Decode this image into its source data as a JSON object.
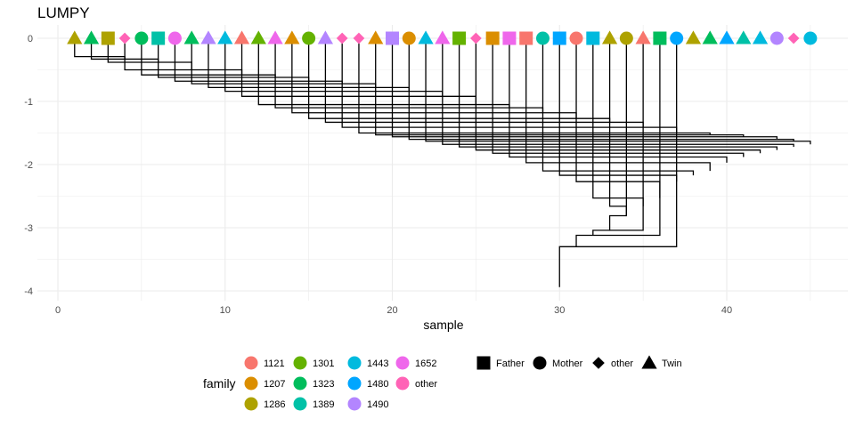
{
  "chart_data": {
    "type": "dendrogram",
    "title": "LUMPY",
    "xlabel": "sample",
    "ylabel": "",
    "xlim": [
      -0.5,
      47.5
    ],
    "ylim": [
      -4.2,
      0.15
    ],
    "x_ticks": [
      0,
      10,
      20,
      30,
      40
    ],
    "y_ticks": [
      0,
      -1,
      -2,
      -3,
      -4
    ],
    "grid": "on",
    "legend_position": "bottom",
    "leaves": [
      {
        "x": 1,
        "family": "1286",
        "role": "Twin"
      },
      {
        "x": 2,
        "family": "1323",
        "role": "Twin"
      },
      {
        "x": 3,
        "family": "1286",
        "role": "Father"
      },
      {
        "x": 4,
        "family": "other",
        "role": "other"
      },
      {
        "x": 5,
        "family": "1323",
        "role": "Mother"
      },
      {
        "x": 6,
        "family": "1389",
        "role": "Father"
      },
      {
        "x": 7,
        "family": "1652",
        "role": "Mother"
      },
      {
        "x": 8,
        "family": "1323",
        "role": "Twin"
      },
      {
        "x": 9,
        "family": "1490",
        "role": "Twin"
      },
      {
        "x": 10,
        "family": "1443",
        "role": "Twin"
      },
      {
        "x": 11,
        "family": "1121",
        "role": "Twin"
      },
      {
        "x": 12,
        "family": "1301",
        "role": "Twin"
      },
      {
        "x": 13,
        "family": "1652",
        "role": "Twin"
      },
      {
        "x": 14,
        "family": "1207",
        "role": "Twin"
      },
      {
        "x": 15,
        "family": "1301",
        "role": "Mother"
      },
      {
        "x": 16,
        "family": "1490",
        "role": "Twin"
      },
      {
        "x": 17,
        "family": "other",
        "role": "other"
      },
      {
        "x": 18,
        "family": "other",
        "role": "other"
      },
      {
        "x": 19,
        "family": "1207",
        "role": "Twin"
      },
      {
        "x": 20,
        "family": "1490",
        "role": "Father"
      },
      {
        "x": 21,
        "family": "1207",
        "role": "Mother"
      },
      {
        "x": 22,
        "family": "1443",
        "role": "Twin"
      },
      {
        "x": 23,
        "family": "1652",
        "role": "Twin"
      },
      {
        "x": 24,
        "family": "1301",
        "role": "Father"
      },
      {
        "x": 25,
        "family": "other",
        "role": "other"
      },
      {
        "x": 26,
        "family": "1207",
        "role": "Father"
      },
      {
        "x": 27,
        "family": "1652",
        "role": "Father"
      },
      {
        "x": 28,
        "family": "1121",
        "role": "Father"
      },
      {
        "x": 29,
        "family": "1389",
        "role": "Mother"
      },
      {
        "x": 30,
        "family": "1480",
        "role": "Father"
      },
      {
        "x": 31,
        "family": "1121",
        "role": "Mother"
      },
      {
        "x": 32,
        "family": "1443",
        "role": "Father"
      },
      {
        "x": 33,
        "family": "1286",
        "role": "Twin"
      },
      {
        "x": 34,
        "family": "1286",
        "role": "Mother"
      },
      {
        "x": 35,
        "family": "1121",
        "role": "Twin"
      },
      {
        "x": 36,
        "family": "1323",
        "role": "Father"
      },
      {
        "x": 37,
        "family": "1480",
        "role": "Mother"
      },
      {
        "x": 38,
        "family": "1286",
        "role": "Twin"
      },
      {
        "x": 39,
        "family": "1323",
        "role": "Twin"
      },
      {
        "x": 40,
        "family": "1480",
        "role": "Twin"
      },
      {
        "x": 41,
        "family": "1389",
        "role": "Twin"
      },
      {
        "x": 42,
        "family": "1443",
        "role": "Twin"
      },
      {
        "x": 43,
        "family": "1490",
        "role": "Mother"
      },
      {
        "x": 44,
        "family": "other",
        "role": "other"
      },
      {
        "x": 45,
        "family": "1443",
        "role": "Mother"
      }
    ],
    "links": [
      {
        "x1": 1,
        "x2": 4,
        "y": -0.29,
        "y1": 0,
        "y2": -0.33
      },
      {
        "x1": 2,
        "x2": 6,
        "y": -0.33,
        "y1": 0,
        "y2": -0.38
      },
      {
        "x1": 3,
        "x2": 8,
        "y": -0.38,
        "y1": 0,
        "y2": -0.5
      },
      {
        "x1": 4,
        "x2": 11,
        "y": -0.5,
        "y1": 0,
        "y2": -0.58
      },
      {
        "x1": 5,
        "x2": 13,
        "y": -0.58,
        "y1": 0,
        "y2": -0.62
      },
      {
        "x1": 6,
        "x2": 15,
        "y": -0.62,
        "y1": 0,
        "y2": -0.68
      },
      {
        "x1": 7,
        "x2": 17,
        "y": -0.68,
        "y1": 0,
        "y2": -0.72
      },
      {
        "x1": 8,
        "x2": 19,
        "y": -0.72,
        "y1": 0,
        "y2": -0.78
      },
      {
        "x1": 9,
        "x2": 21,
        "y": -0.78,
        "y1": 0,
        "y2": -0.84
      },
      {
        "x1": 10,
        "x2": 23,
        "y": -0.84,
        "y1": 0,
        "y2": -0.92
      },
      {
        "x1": 11,
        "x2": 25,
        "y": -0.92,
        "y1": 0,
        "y2": -1.05
      },
      {
        "x1": 12,
        "x2": 27,
        "y": -1.05,
        "y1": 0,
        "y2": -1.1
      },
      {
        "x1": 13,
        "x2": 29,
        "y": -1.1,
        "y1": 0,
        "y2": -1.18
      },
      {
        "x1": 14,
        "x2": 31,
        "y": -1.18,
        "y1": 0,
        "y2": -1.27
      },
      {
        "x1": 15,
        "x2": 33,
        "y": -1.27,
        "y1": 0,
        "y2": -1.33
      },
      {
        "x1": 16,
        "x2": 35,
        "y": -1.33,
        "y1": 0,
        "y2": -1.41
      },
      {
        "x1": 17,
        "x2": 37,
        "y": -1.41,
        "y1": 0,
        "y2": -1.5
      },
      {
        "x1": 18,
        "x2": 39,
        "y": -1.5,
        "y1": 0,
        "y2": -1.53
      },
      {
        "x1": 19,
        "x2": 41,
        "y": -1.53,
        "y1": 0,
        "y2": -1.56
      },
      {
        "x1": 20,
        "x2": 43,
        "y": -1.56,
        "y1": 0,
        "y2": -1.6
      },
      {
        "x1": 21,
        "x2": 44,
        "y": -1.6,
        "y1": 0,
        "y2": -1.63
      },
      {
        "x1": 22,
        "x2": 45,
        "y": -1.63,
        "y1": 0,
        "y2": -1.68
      },
      {
        "x1": 23,
        "x2": 44,
        "y": -1.68,
        "y1": 0,
        "y2": -1.72
      },
      {
        "x1": 24,
        "x2": 43,
        "y": -1.72,
        "y1": 0,
        "y2": -1.77
      },
      {
        "x1": 25,
        "x2": 42,
        "y": -1.77,
        "y1": 0,
        "y2": -1.82
      },
      {
        "x1": 26,
        "x2": 41,
        "y": -1.82,
        "y1": 0,
        "y2": -1.88
      },
      {
        "x1": 27,
        "x2": 40,
        "y": -1.88,
        "y1": 0,
        "y2": -1.97
      },
      {
        "x1": 28,
        "x2": 39,
        "y": -1.97,
        "y1": 0,
        "y2": -2.1
      },
      {
        "x1": 29,
        "x2": 38,
        "y": -2.1,
        "y1": 0,
        "y2": -2.17
      },
      {
        "x1": 30,
        "x2": 37,
        "y": -2.17,
        "y1": 0,
        "y2": -2.27
      },
      {
        "x1": 31,
        "x2": 36,
        "y": -2.27,
        "y1": 0,
        "y2": -2.53
      },
      {
        "x1": 32,
        "x2": 35,
        "y": -2.53,
        "y1": 0,
        "y2": -2.66
      },
      {
        "x1": 33,
        "x2": 34,
        "y": -2.66,
        "y1": 0,
        "y2": -2.81
      },
      {
        "x1": 34,
        "x2": 33,
        "y": -2.81,
        "y1": 0,
        "y2": -3.04
      },
      {
        "x1": 35,
        "x2": 32,
        "y": -3.04,
        "y1": 0,
        "y2": -3.12
      },
      {
        "x1": 36,
        "x2": 31,
        "y": -3.12,
        "y1": 0,
        "y2": -3.3
      },
      {
        "x1": 37,
        "x2": 30,
        "y": -3.3,
        "y1": 0,
        "y2": -3.94
      }
    ],
    "legend": {
      "family_title": "family",
      "families": [
        {
          "name": "1121",
          "color": "#F8766D"
        },
        {
          "name": "1207",
          "color": "#DB8E00"
        },
        {
          "name": "1286",
          "color": "#AEA200"
        },
        {
          "name": "1301",
          "color": "#64B200"
        },
        {
          "name": "1323",
          "color": "#00BD5C"
        },
        {
          "name": "1389",
          "color": "#00C1A7"
        },
        {
          "name": "1443",
          "color": "#00BADE"
        },
        {
          "name": "1480",
          "color": "#00A6FF"
        },
        {
          "name": "1490",
          "color": "#B385FF"
        },
        {
          "name": "1652",
          "color": "#EF67EB"
        },
        {
          "name": "other",
          "color": "#FF63B6"
        }
      ],
      "roles": [
        {
          "name": "Father",
          "shape": "square"
        },
        {
          "name": "Mother",
          "shape": "circle"
        },
        {
          "name": "other",
          "shape": "diamond"
        },
        {
          "name": "Twin",
          "shape": "triangle"
        }
      ]
    }
  }
}
